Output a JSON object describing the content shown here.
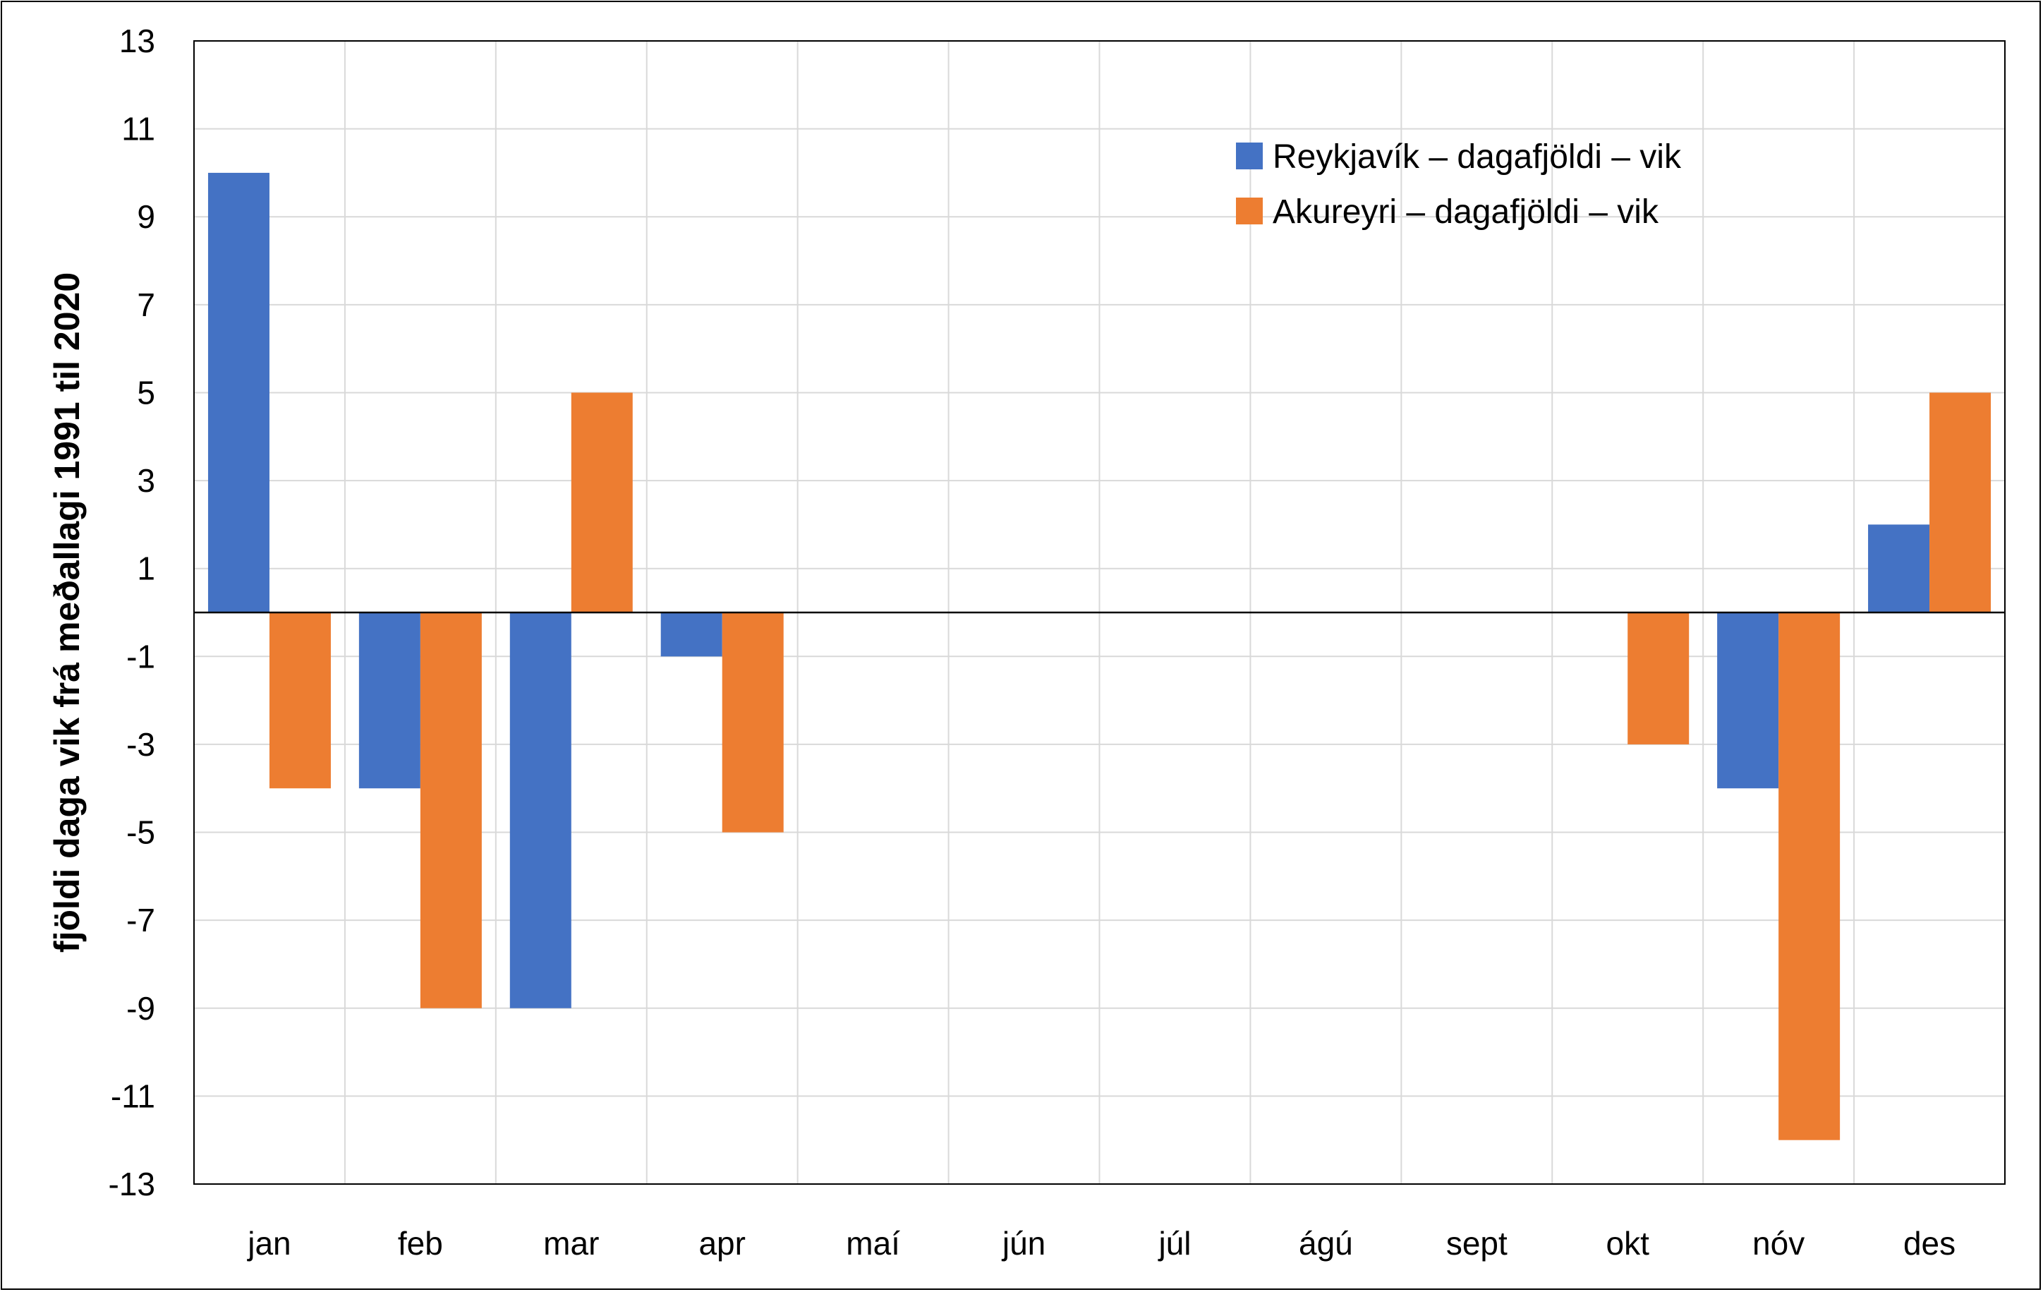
{
  "chart_data": {
    "type": "bar",
    "ylabel": "fjöldi daga vik frá meðallagi 1991 til 2020",
    "xlabel": "",
    "ylim": [
      -13,
      13
    ],
    "yticks": [
      13,
      11,
      9,
      7,
      5,
      3,
      1,
      -1,
      -3,
      -5,
      -7,
      -9,
      -11,
      -13
    ],
    "grid": true,
    "legend_position": "top-right",
    "categories": [
      "jan",
      "feb",
      "mar",
      "apr",
      "maí",
      "jún",
      "júl",
      "ágú",
      "sept",
      "okt",
      "nóv",
      "des"
    ],
    "series": [
      {
        "name": "Reykjavík – dagafjöldi – vik",
        "color": "#4472C4",
        "values": [
          10,
          -4,
          -9,
          -1,
          null,
          null,
          null,
          null,
          null,
          null,
          -4,
          2
        ]
      },
      {
        "name": "Akureyri – dagafjöldi – vik",
        "color": "#ED7D31",
        "values": [
          -4,
          -9,
          5,
          -5,
          null,
          null,
          null,
          null,
          null,
          -3,
          -12,
          5
        ]
      }
    ]
  }
}
